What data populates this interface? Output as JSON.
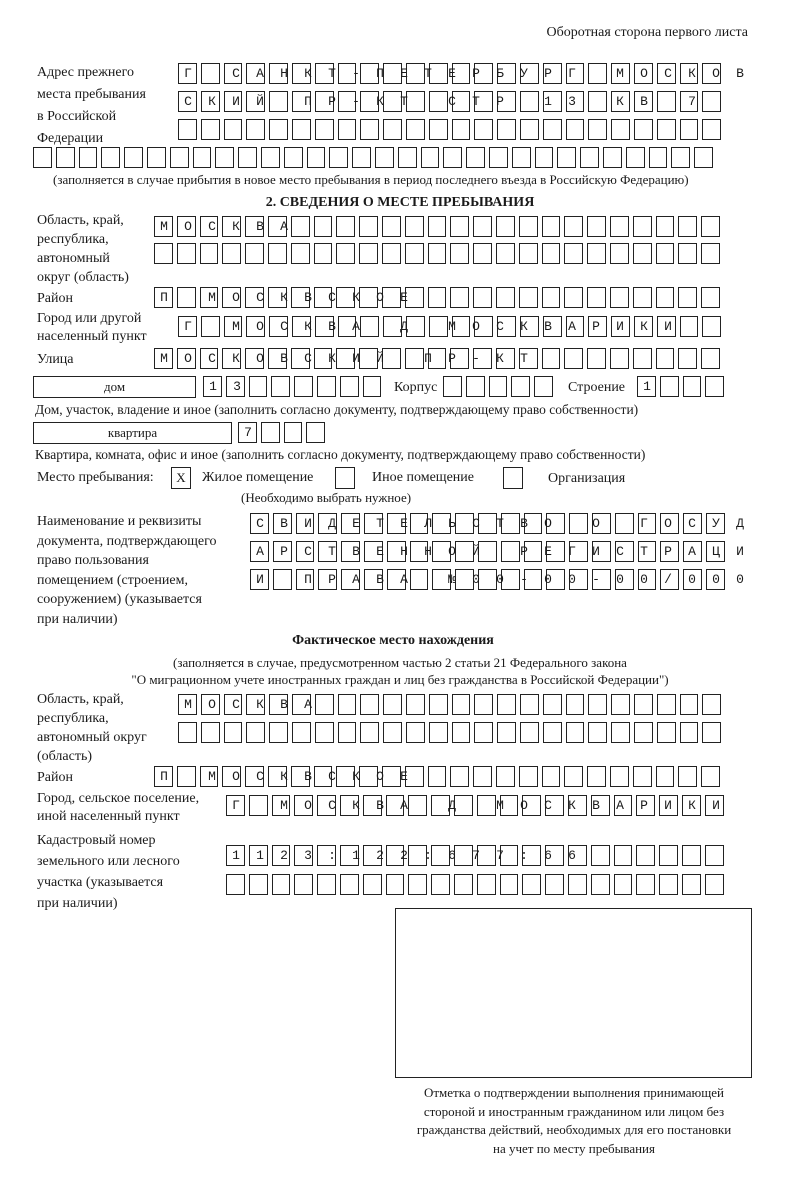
{
  "header": "Оборотная сторона первого листа",
  "prev_address": {
    "label": [
      "Адрес прежнего",
      "места пребывания",
      "в Российской",
      "Федерации"
    ],
    "rows": [
      "Г САНКТ-ПЕТЕРБУРГ МОСКОВ",
      "СКИЙ ПР-КТ СТР 13 КВ 7  ",
      "",
      ""
    ],
    "note": "(заполняется в случае прибытия в новое место пребывания в период последнего въезда в Российскую Федерацию)"
  },
  "section2": {
    "title": "2. СВЕДЕНИЯ О МЕСТЕ ПРЕБЫВАНИЯ",
    "region_label": [
      "Область, край,",
      "республика,",
      "автономный",
      "округ (область)"
    ],
    "region_rows": [
      "МОСКВА",
      ""
    ],
    "district_label": "Район",
    "district": "П МОСКВСКОЕ",
    "city_label": [
      "Город или другой",
      "населенный пункт"
    ],
    "city": "Г МОСКВА Д МОСКВАРИКИ",
    "street_label": "Улица",
    "street": "МОСКОВСКИЙ ПР-КТ",
    "house_type": "дом",
    "house": "13",
    "korpus_label": "Корпус",
    "korpus": "",
    "building_label": "Строение",
    "building": "1",
    "house_note": "Дом, участок, владение и иное (заполнить согласно документу, подтверждающему право собственности)",
    "apt_type": "квартира",
    "apt": "7",
    "apt_note": "Квартира, комната, офис и иное (заполнить согласно документу, подтверждающему право собственности)",
    "stay_label": "Место пребывания:",
    "stay_options": [
      {
        "label": "Жилое помещение",
        "mark": "Х"
      },
      {
        "label": "Иное помещение",
        "mark": ""
      },
      {
        "label": "Организация",
        "mark": ""
      }
    ],
    "stay_note": "(Необходимо выбрать нужное)",
    "doc_label": [
      "Наименование и реквизиты",
      "документа, подтверждающего",
      "право пользования",
      "помещением (строением,",
      "сооружением) (указывается",
      "при наличии)"
    ],
    "doc_rows": [
      "СВИДЕТЕЛЬСТВО О ГОСУД",
      "АРСТВЕННОЙ РЕГИСТРАЦИ",
      "И ПРАВА №00-00-00/000"
    ]
  },
  "actual": {
    "title": "Фактическое место нахождения",
    "note1": "(заполняется в случае, предусмотренном частью 2 статьи 21 Федерального закона",
    "note2": "\"О миграционном учете иностранных граждан и лиц без гражданства в Российской Федерации\")",
    "region_label": [
      "Область, край,",
      "республика,",
      "автономный округ",
      "(область)"
    ],
    "region_rows": [
      "МОСКВА",
      ""
    ],
    "district_label": "Район",
    "district": "П МОСКВСКОЕ",
    "city_label": [
      "Город, сельское поселение,",
      "иной населенный пункт"
    ],
    "city": "Г МОСКВА Д МОСКВАРИКИ",
    "cadastre_label": [
      "Кадастровый номер",
      "земельного или лесного",
      "участка (указывается",
      "при наличии)"
    ],
    "cadastre_rows": [
      "1123:122:677:66",
      ""
    ]
  },
  "stamp_caption": [
    "Отметка о подтверждении выполнения принимающей",
    "стороной и иностранным гражданином или лицом без",
    "гражданства действий, необходимых для его постановки",
    "на учет по месту пребывания"
  ]
}
